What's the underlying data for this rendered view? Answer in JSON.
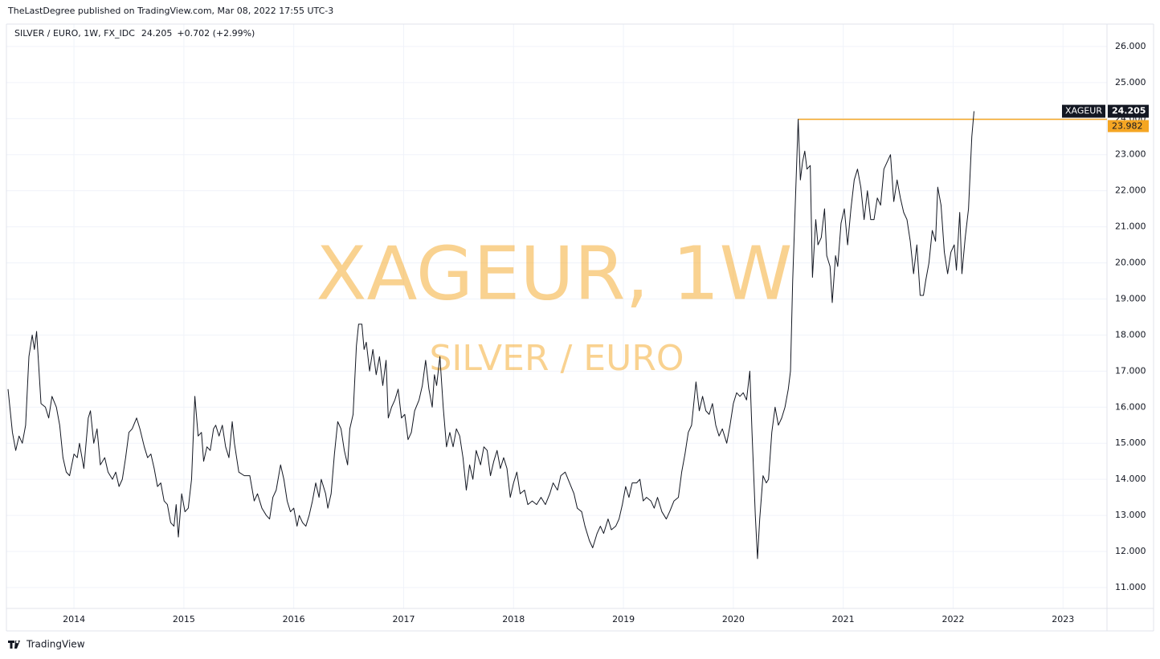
{
  "header": {
    "published": "TheLastDegree published on TradingView.com, Mar 08, 2022 17:55 UTC-3"
  },
  "footer": {
    "brand": "TradingView"
  },
  "chart_data": {
    "type": "line",
    "legend": {
      "instrument": "SILVER / EURO, 1W, FX_IDC",
      "change": "+0.702 (+2.99%)"
    },
    "watermark": {
      "title": "XAGEUR, 1W",
      "subtitle": "SILVER / EURO"
    },
    "x": [
      2013.4,
      2013.44,
      2013.47,
      2013.5,
      2013.53,
      2013.56,
      2013.59,
      2013.62,
      2013.64,
      2013.66,
      2013.7,
      2013.74,
      2013.77,
      2013.8,
      2013.84,
      2013.87,
      2013.9,
      2013.93,
      2013.96,
      2014.0,
      2014.03,
      2014.05,
      2014.09,
      2014.13,
      2014.15,
      2014.18,
      2014.21,
      2014.24,
      2014.28,
      2014.31,
      2014.35,
      2014.38,
      2014.41,
      2014.44,
      2014.47,
      2014.5,
      2014.53,
      2014.57,
      2014.6,
      2014.64,
      2014.67,
      2014.7,
      2014.73,
      2014.76,
      2014.79,
      2014.82,
      2014.85,
      2014.88,
      2014.91,
      2014.93,
      2014.95,
      2014.98,
      2015.01,
      2015.04,
      2015.07,
      2015.1,
      2015.13,
      2015.16,
      2015.18,
      2015.21,
      2015.24,
      2015.27,
      2015.29,
      2015.32,
      2015.35,
      2015.38,
      2015.41,
      2015.44,
      2015.46,
      2015.5,
      2015.55,
      2015.6,
      2015.64,
      2015.67,
      2015.71,
      2015.75,
      2015.78,
      2015.81,
      2015.84,
      2015.88,
      2015.91,
      2015.94,
      2015.97,
      2016.0,
      2016.03,
      2016.05,
      2016.08,
      2016.11,
      2016.14,
      2016.17,
      2016.2,
      2016.23,
      2016.25,
      2016.29,
      2016.31,
      2016.34,
      2016.37,
      2016.4,
      2016.43,
      2016.46,
      2016.49,
      2016.51,
      2016.54,
      2016.57,
      2016.59,
      2016.62,
      2016.64,
      2016.66,
      2016.69,
      2016.72,
      2016.75,
      2016.78,
      2016.81,
      2016.84,
      2016.86,
      2016.89,
      2016.92,
      2016.95,
      2016.98,
      2017.01,
      2017.04,
      2017.07,
      2017.1,
      2017.14,
      2017.17,
      2017.2,
      2017.23,
      2017.26,
      2017.28,
      2017.3,
      2017.33,
      2017.36,
      2017.39,
      2017.42,
      2017.45,
      2017.48,
      2017.51,
      2017.54,
      2017.57,
      2017.6,
      2017.63,
      2017.66,
      2017.7,
      2017.73,
      2017.76,
      2017.79,
      2017.82,
      2017.85,
      2017.88,
      2017.91,
      2017.94,
      2017.97,
      2018.0,
      2018.03,
      2018.06,
      2018.1,
      2018.13,
      2018.17,
      2018.21,
      2018.25,
      2018.29,
      2018.33,
      2018.36,
      2018.4,
      2018.43,
      2018.47,
      2018.51,
      2018.55,
      2018.58,
      2018.62,
      2018.65,
      2018.69,
      2018.72,
      2018.76,
      2018.79,
      2018.82,
      2018.86,
      2018.89,
      2018.93,
      2018.96,
      2018.99,
      2019.02,
      2019.05,
      2019.08,
      2019.12,
      2019.15,
      2019.18,
      2019.21,
      2019.25,
      2019.28,
      2019.31,
      2019.35,
      2019.39,
      2019.42,
      2019.46,
      2019.5,
      2019.53,
      2019.56,
      2019.59,
      2019.62,
      2019.66,
      2019.69,
      2019.72,
      2019.75,
      2019.78,
      2019.81,
      2019.84,
      2019.87,
      2019.9,
      2019.94,
      2019.97,
      2020.0,
      2020.03,
      2020.06,
      2020.09,
      2020.12,
      2020.15,
      2020.17,
      2020.2,
      2020.22,
      2020.24,
      2020.27,
      2020.3,
      2020.32,
      2020.35,
      2020.38,
      2020.41,
      2020.44,
      2020.47,
      2020.5,
      2020.52,
      2020.54,
      2020.56,
      2020.59,
      2020.61,
      2020.63,
      2020.65,
      2020.67,
      2020.7,
      2020.72,
      2020.75,
      2020.77,
      2020.8,
      2020.83,
      2020.85,
      2020.88,
      2020.9,
      2020.93,
      2020.95,
      2020.98,
      2021.01,
      2021.04,
      2021.07,
      2021.1,
      2021.13,
      2021.16,
      2021.19,
      2021.22,
      2021.25,
      2021.28,
      2021.31,
      2021.34,
      2021.37,
      2021.4,
      2021.43,
      2021.46,
      2021.49,
      2021.52,
      2021.55,
      2021.58,
      2021.61,
      2021.64,
      2021.67,
      2021.7,
      2021.73,
      2021.75,
      2021.78,
      2021.81,
      2021.84,
      2021.86,
      2021.89,
      2021.92,
      2021.95,
      2021.98,
      2022.01,
      2022.03,
      2022.06,
      2022.08,
      2022.11,
      2022.14,
      2022.17,
      2022.19
    ],
    "series": [
      {
        "name": "XAGEUR",
        "color": "#131722",
        "values": [
          16.5,
          15.3,
          14.8,
          15.2,
          15.0,
          15.5,
          17.4,
          18.0,
          17.6,
          18.1,
          16.1,
          16.0,
          15.7,
          16.3,
          16.0,
          15.5,
          14.6,
          14.2,
          14.1,
          14.7,
          14.6,
          15.0,
          14.3,
          15.7,
          15.9,
          15.0,
          15.4,
          14.4,
          14.6,
          14.2,
          14.0,
          14.2,
          13.8,
          14.0,
          14.6,
          15.3,
          15.4,
          15.7,
          15.4,
          14.9,
          14.6,
          14.7,
          14.3,
          13.8,
          13.9,
          13.4,
          13.3,
          12.8,
          12.7,
          13.3,
          12.4,
          13.6,
          13.1,
          13.2,
          14.0,
          16.3,
          15.2,
          15.3,
          14.5,
          14.9,
          14.8,
          15.4,
          15.5,
          15.2,
          15.5,
          14.9,
          14.6,
          15.6,
          15.0,
          14.2,
          14.1,
          14.1,
          13.4,
          13.6,
          13.2,
          13.0,
          12.9,
          13.5,
          13.7,
          14.4,
          14.0,
          13.4,
          13.1,
          13.2,
          12.7,
          13.0,
          12.8,
          12.7,
          13.0,
          13.4,
          13.9,
          13.5,
          14.0,
          13.6,
          13.2,
          13.6,
          14.7,
          15.6,
          15.4,
          14.8,
          14.4,
          15.4,
          15.8,
          17.7,
          18.3,
          18.3,
          17.6,
          17.8,
          17.0,
          17.6,
          16.9,
          17.4,
          16.6,
          17.3,
          15.7,
          16.0,
          16.2,
          16.5,
          15.7,
          15.8,
          15.1,
          15.3,
          15.9,
          16.2,
          16.6,
          17.3,
          16.5,
          16.0,
          16.9,
          16.6,
          17.4,
          16.0,
          14.9,
          15.3,
          14.9,
          15.4,
          15.2,
          14.6,
          13.7,
          14.4,
          14.0,
          14.8,
          14.4,
          14.9,
          14.8,
          14.1,
          14.5,
          14.8,
          14.3,
          14.6,
          14.3,
          13.5,
          13.9,
          14.2,
          13.6,
          13.7,
          13.3,
          13.4,
          13.3,
          13.5,
          13.3,
          13.6,
          13.9,
          13.7,
          14.1,
          14.2,
          13.9,
          13.6,
          13.2,
          13.1,
          12.7,
          12.3,
          12.1,
          12.5,
          12.7,
          12.5,
          12.9,
          12.6,
          12.7,
          12.9,
          13.3,
          13.8,
          13.5,
          13.9,
          13.9,
          14.0,
          13.4,
          13.5,
          13.4,
          13.2,
          13.5,
          13.1,
          12.9,
          13.1,
          13.4,
          13.5,
          14.2,
          14.7,
          15.3,
          15.5,
          16.7,
          15.9,
          16.3,
          15.9,
          15.8,
          16.1,
          15.5,
          15.2,
          15.4,
          15.0,
          15.5,
          16.1,
          16.4,
          16.3,
          16.4,
          16.2,
          17.0,
          15.3,
          13.0,
          11.8,
          12.9,
          14.1,
          13.9,
          14.0,
          15.3,
          16.0,
          15.5,
          15.7,
          16.0,
          16.5,
          17.0,
          19.5,
          21.3,
          23.982,
          22.3,
          22.8,
          23.1,
          22.6,
          22.7,
          19.6,
          21.2,
          20.5,
          20.7,
          21.5,
          20.2,
          19.9,
          18.9,
          20.2,
          19.9,
          21.1,
          21.5,
          20.5,
          21.5,
          22.3,
          22.6,
          22.1,
          21.2,
          22.0,
          21.2,
          21.2,
          21.8,
          21.6,
          22.6,
          22.8,
          23.0,
          21.7,
          22.3,
          21.8,
          21.4,
          21.2,
          20.6,
          19.7,
          20.5,
          19.1,
          19.1,
          19.5,
          20.0,
          20.9,
          20.6,
          22.1,
          21.6,
          20.3,
          19.7,
          20.3,
          20.5,
          19.8,
          21.4,
          19.7,
          20.7,
          21.5,
          23.5,
          24.205
        ]
      }
    ],
    "hline": {
      "value": 23.982,
      "start": 2020.59,
      "color": "#f5a623"
    },
    "xlim": [
      2013.4,
      2023.4
    ],
    "xticks": [
      2014,
      2015,
      2016,
      2017,
      2018,
      2019,
      2020,
      2021,
      2022,
      2023
    ],
    "ylim": [
      10.42,
      26.51
    ],
    "yticks": [
      {
        "value": 11,
        "label": "11.000"
      },
      {
        "value": 12,
        "label": "12.000"
      },
      {
        "value": 13,
        "label": "13.000"
      },
      {
        "value": 14,
        "label": "14.000"
      },
      {
        "value": 15,
        "label": "15.000"
      },
      {
        "value": 16,
        "label": "16.000"
      },
      {
        "value": 17,
        "label": "17.000"
      },
      {
        "value": 18,
        "label": "18.000"
      },
      {
        "value": 19,
        "label": "19.000"
      },
      {
        "value": 20,
        "label": "20.000"
      },
      {
        "value": 21,
        "label": "21.000"
      },
      {
        "value": 22,
        "label": "22.000"
      },
      {
        "value": 23,
        "label": "23.000"
      },
      {
        "value": 24,
        "label": "24.000"
      },
      {
        "value": 25,
        "label": "25.000"
      },
      {
        "value": 26,
        "label": "26.000"
      }
    ],
    "grid": true
  }
}
